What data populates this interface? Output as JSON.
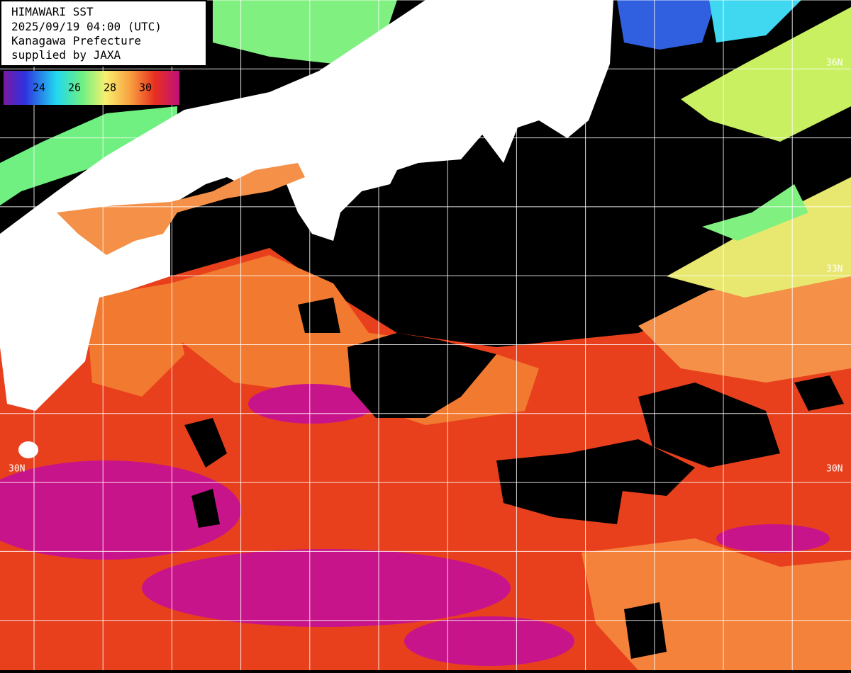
{
  "header": {
    "lines": [
      "HIMAWARI SST",
      "2025/09/19 04:00 (UTC)",
      "Kanagawa Prefecture",
      "supplied by JAXA"
    ]
  },
  "colorbar": {
    "ticks": [
      24,
      26,
      28,
      30
    ]
  },
  "latitudes": [
    "36N",
    "33N",
    "30N"
  ]
}
